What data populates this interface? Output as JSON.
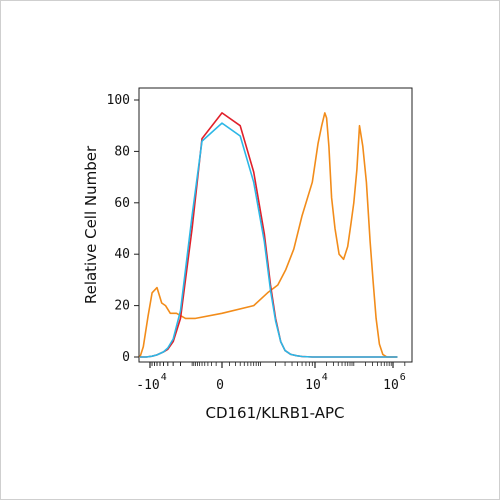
{
  "chart_data": {
    "type": "line",
    "title": "",
    "xlabel": "CD161/KLRB1-APC",
    "ylabel": "Relative Cell Number",
    "x_scale": "biexponential",
    "xlim": [
      -20000,
      1500000
    ],
    "ylim": [
      0,
      100
    ],
    "y_ticks": [
      "0",
      "20",
      "40",
      "60",
      "80",
      "100"
    ],
    "x_ticks": [
      {
        "base": "-10",
        "exp": "4",
        "value": -10000
      },
      {
        "base": "0",
        "exp": "",
        "value": 0
      },
      {
        "base": "10",
        "exp": "4",
        "value": 10000
      },
      {
        "base": "10",
        "exp": "6",
        "value": 1000000
      }
    ],
    "grid": false,
    "series": [
      {
        "color": "#f28c1a",
        "x": [
          -20000,
          -14000,
          -11000,
          -9000,
          -7000,
          -5500,
          -4500,
          -3500,
          -2500,
          -1500,
          -800,
          0,
          700,
          1400,
          2200,
          3100,
          4300,
          6000,
          9000,
          12000,
          15000,
          18000,
          20000,
          23000,
          27000,
          33000,
          42000,
          55000,
          70000,
          85000,
          100000,
          120000,
          140000,
          170000,
          210000,
          260000,
          310000,
          370000,
          450000,
          550000,
          700000,
          900000,
          1300000
        ],
        "y": [
          0,
          4,
          16,
          25,
          27,
          21,
          20,
          17,
          17,
          15,
          15,
          17,
          20,
          25,
          28,
          34,
          42,
          55,
          68,
          83,
          90,
          95,
          93,
          82,
          62,
          50,
          40,
          38,
          43,
          52,
          60,
          73,
          90,
          82,
          68,
          45,
          30,
          15,
          5,
          1,
          0,
          0,
          0
        ]
      },
      {
        "color": "#e0202a",
        "x": [
          -20000,
          -12000,
          -9000,
          -7000,
          -5000,
          -4000,
          -3000,
          -2000,
          -1000,
          -500,
          0,
          300,
          700,
          1200,
          1600,
          2000,
          2500,
          3000,
          3800,
          4800,
          6000,
          9000,
          20000,
          100000,
          1300000
        ],
        "y": [
          0,
          0,
          0.3,
          0.8,
          2,
          3,
          6,
          15,
          50,
          85,
          95,
          90,
          72,
          48,
          28,
          15,
          6,
          2.5,
          1,
          0.5,
          0.2,
          0,
          0,
          0,
          0
        ]
      },
      {
        "color": "#2cb7e6",
        "x": [
          -20000,
          -12000,
          -9000,
          -7000,
          -5000,
          -4000,
          -3000,
          -2000,
          -1000,
          -500,
          0,
          300,
          700,
          1200,
          1600,
          2000,
          2500,
          3000,
          3800,
          4800,
          6000,
          9000,
          20000,
          100000,
          1300000
        ],
        "y": [
          0,
          0,
          0.3,
          0.8,
          2,
          3.5,
          7,
          18,
          55,
          84,
          91,
          86,
          68,
          45,
          26,
          14,
          6,
          2.5,
          1,
          0.5,
          0.2,
          0,
          0,
          0,
          0
        ]
      }
    ]
  }
}
